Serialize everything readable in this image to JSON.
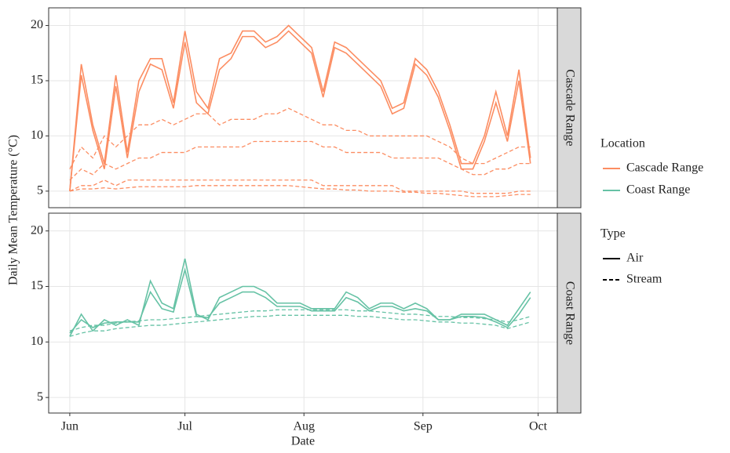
{
  "chart_data": {
    "type": "line",
    "x_label": "Date",
    "y_label": "Daily Mean Temperature (°C)",
    "xlim": [
      -5.5,
      127
    ],
    "xticks": [
      {
        "value": 0,
        "label": "Jun"
      },
      {
        "value": 30,
        "label": "Jul"
      },
      {
        "value": 61,
        "label": "Aug"
      },
      {
        "value": 92,
        "label": "Sep"
      },
      {
        "value": 122,
        "label": "Oct"
      }
    ],
    "x": [
      0,
      3,
      6,
      9,
      12,
      15,
      18,
      21,
      24,
      27,
      30,
      33,
      36,
      39,
      42,
      45,
      48,
      51,
      54,
      57,
      60,
      63,
      66,
      69,
      72,
      75,
      78,
      81,
      84,
      87,
      90,
      93,
      96,
      99,
      102,
      105,
      108,
      111,
      114,
      117,
      120
    ],
    "grid": true,
    "legend": [
      {
        "title": "Location",
        "items": [
          {
            "label": "Cascade Range",
            "color": "#fc8d62"
          },
          {
            "label": "Coast Range",
            "color": "#66c2a5"
          }
        ]
      },
      {
        "title": "Type",
        "items": [
          {
            "label": "Air",
            "dash": "solid"
          },
          {
            "label": "Stream",
            "dash": "dashed"
          }
        ]
      }
    ],
    "facets": [
      {
        "label": "Cascade Range",
        "ylim": [
          3.5,
          21.6
        ],
        "yticks": [
          5,
          10,
          15,
          20
        ],
        "series": [
          {
            "color": "#fc8d62",
            "dash": "solid",
            "values": [
              5,
              16.5,
              11,
              7.5,
              15.5,
              8.5,
              15,
              17,
              17,
              13,
              19.5,
              14,
              12.5,
              17,
              17.5,
              19.5,
              19.5,
              18.5,
              19,
              20,
              19,
              18,
              14,
              18.5,
              18,
              17,
              16,
              15,
              12.5,
              13,
              17,
              16,
              14,
              11,
              7.5,
              7.5,
              10,
              14,
              10,
              16,
              8
            ]
          },
          {
            "color": "#fc8d62",
            "dash": "solid",
            "values": [
              5,
              15.5,
              10.5,
              7,
              14.5,
              8,
              14,
              16.5,
              16,
              12.5,
              18.5,
              13,
              12,
              16,
              17,
              19,
              19,
              18,
              18.5,
              19.5,
              18.5,
              17.5,
              13.5,
              18,
              17.5,
              16.5,
              15.5,
              14.5,
              12,
              12.5,
              16.5,
              15.5,
              13.5,
              10.5,
              7,
              7,
              9.5,
              13,
              9.5,
              15,
              7.5
            ]
          },
          {
            "color": "#fc8d62",
            "dash": "dashed",
            "values": [
              7,
              9,
              8,
              10,
              9,
              10,
              11,
              11,
              11.5,
              11,
              11.5,
              12,
              12,
              11,
              11.5,
              11.5,
              11.5,
              12,
              12,
              12.5,
              12,
              11.5,
              11,
              11,
              10.5,
              10.5,
              10,
              10,
              10,
              10,
              10,
              10,
              9.5,
              9,
              8,
              7.5,
              7.5,
              8,
              8.5,
              9,
              9
            ]
          },
          {
            "color": "#fc8d62",
            "dash": "dashed",
            "values": [
              6,
              7,
              6.5,
              7.5,
              7,
              7.5,
              8,
              8,
              8.5,
              8.5,
              8.5,
              9,
              9,
              9,
              9,
              9,
              9.5,
              9.5,
              9.5,
              9.5,
              9.5,
              9.5,
              9,
              9,
              8.5,
              8.5,
              8.5,
              8.5,
              8,
              8,
              8,
              8,
              8,
              7.5,
              7,
              6.5,
              6.5,
              7,
              7,
              7.5,
              7.5
            ]
          },
          {
            "color": "#fc8d62",
            "dash": "dashed",
            "values": [
              5,
              5.5,
              5.5,
              6,
              5.5,
              6,
              6,
              6,
              6,
              6,
              6,
              6,
              6,
              6,
              6,
              6,
              6,
              6,
              6,
              6,
              6,
              6,
              5.5,
              5.5,
              5.5,
              5.5,
              5.5,
              5.5,
              5.5,
              5,
              5,
              5,
              5,
              5,
              5,
              4.8,
              4.8,
              4.8,
              4.8,
              5,
              5
            ]
          },
          {
            "color": "#fc8d62",
            "dash": "dashed",
            "values": [
              5,
              5.2,
              5.2,
              5.3,
              5.2,
              5.3,
              5.4,
              5.4,
              5.4,
              5.4,
              5.4,
              5.5,
              5.5,
              5.5,
              5.5,
              5.5,
              5.5,
              5.5,
              5.5,
              5.5,
              5.4,
              5.3,
              5.2,
              5.2,
              5.1,
              5.1,
              5,
              5,
              5,
              4.9,
              4.9,
              4.8,
              4.8,
              4.7,
              4.6,
              4.5,
              4.5,
              4.5,
              4.6,
              4.7,
              4.7
            ]
          }
        ]
      },
      {
        "label": "Coast Range",
        "ylim": [
          3.6,
          21.6
        ],
        "yticks": [
          5,
          10,
          15,
          20
        ],
        "series": [
          {
            "color": "#66c2a5",
            "dash": "solid",
            "values": [
              10.5,
              12.5,
              11,
              12,
              11.5,
              12,
              11.5,
              15.5,
              13.5,
              13,
              17.5,
              12.5,
              12,
              14,
              14.5,
              15,
              15,
              14.5,
              13.5,
              13.5,
              13.5,
              13,
              13,
              13,
              14.5,
              14,
              13,
              13.5,
              13.5,
              13,
              13.5,
              13,
              12,
              12,
              12.5,
              12.5,
              12.5,
              12,
              11.5,
              13,
              14.5
            ]
          },
          {
            "color": "#66c2a5",
            "dash": "solid",
            "values": [
              10.8,
              12,
              11.3,
              11.7,
              11.8,
              11.8,
              11.8,
              14.5,
              13,
              12.7,
              16.5,
              12.3,
              12.2,
              13.5,
              14,
              14.5,
              14.5,
              14,
              13.2,
              13.2,
              13.2,
              12.8,
              12.8,
              12.8,
              14,
              13.6,
              12.8,
              13.2,
              13.2,
              12.8,
              13,
              12.8,
              12,
              12,
              12.3,
              12.3,
              12.2,
              11.8,
              11.3,
              12.5,
              14
            ]
          },
          {
            "color": "#66c2a5",
            "dash": "dashed",
            "values": [
              11,
              11.3,
              11.5,
              11.5,
              11.7,
              11.8,
              11.9,
              12,
              12,
              12.1,
              12.2,
              12.3,
              12.4,
              12.5,
              12.6,
              12.7,
              12.8,
              12.8,
              12.9,
              12.9,
              12.9,
              12.9,
              12.9,
              12.9,
              12.9,
              12.8,
              12.8,
              12.7,
              12.6,
              12.5,
              12.5,
              12.4,
              12.3,
              12.3,
              12.2,
              12.2,
              12.1,
              12,
              11.8,
              12,
              12.3
            ]
          },
          {
            "color": "#66c2a5",
            "dash": "dashed",
            "values": [
              10.5,
              10.8,
              11,
              11,
              11.2,
              11.3,
              11.4,
              11.5,
              11.5,
              11.6,
              11.7,
              11.8,
              11.9,
              12,
              12.1,
              12.2,
              12.3,
              12.3,
              12.4,
              12.4,
              12.4,
              12.4,
              12.4,
              12.4,
              12.4,
              12.3,
              12.3,
              12.2,
              12.1,
              12,
              12,
              11.9,
              11.8,
              11.8,
              11.7,
              11.7,
              11.6,
              11.5,
              11.2,
              11.5,
              11.8
            ]
          }
        ]
      }
    ]
  }
}
